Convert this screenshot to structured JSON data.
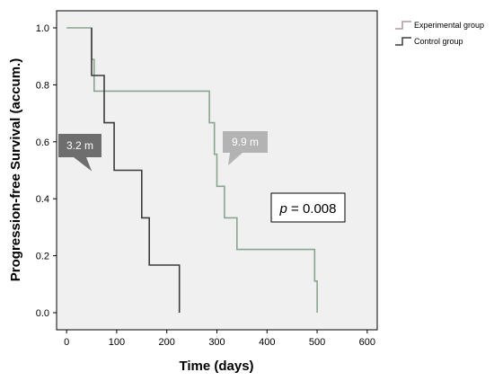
{
  "chart_data": {
    "type": "line",
    "subtype": "kaplan-meier-step",
    "xlabel": "Time (days)",
    "ylabel": "Progression-free Survival (accum.)",
    "xlim": [
      -20,
      620
    ],
    "ylim": [
      -0.06,
      1.06
    ],
    "xticks": [
      "0",
      "100",
      "200",
      "300",
      "400",
      "500",
      "600"
    ],
    "yticks": [
      "0.0",
      "0.2",
      "0.4",
      "0.6",
      "0.8",
      "1.0"
    ],
    "grid": false,
    "legend_position": "right-top",
    "series": [
      {
        "name": "Experimental group",
        "color": "#8aa58e",
        "legend_color": "#b49a9a",
        "x": [
          0,
          50,
          50,
          55,
          55,
          285,
          285,
          295,
          295,
          300,
          300,
          315,
          315,
          340,
          340,
          495,
          495,
          500,
          500
        ],
        "y": [
          1.0,
          1.0,
          0.889,
          0.889,
          0.778,
          0.778,
          0.667,
          0.667,
          0.556,
          0.556,
          0.444,
          0.444,
          0.333,
          0.333,
          0.222,
          0.222,
          0.111,
          0.111,
          0.0
        ]
      },
      {
        "name": "Control group",
        "color": "#3b3b3b",
        "legend_color": "#3b3b3b",
        "x": [
          50,
          50,
          55,
          55,
          75,
          75,
          95,
          95,
          150,
          150,
          165,
          165,
          225,
          225
        ],
        "y": [
          1.0,
          0.833,
          0.833,
          0.833,
          0.833,
          0.667,
          0.667,
          0.5,
          0.5,
          0.333,
          0.333,
          0.167,
          0.167,
          0.0
        ]
      }
    ],
    "annotations": {
      "control_median": {
        "text": "3.2 m",
        "x": 95,
        "y": 0.5,
        "fill": "#6e6e6e"
      },
      "experimental_median": {
        "text": "9.9 m",
        "x": 300,
        "y": 0.556,
        "fill": "#b3b3b3"
      },
      "p_value": {
        "italic": "p",
        "text": " = 0.008"
      }
    }
  }
}
